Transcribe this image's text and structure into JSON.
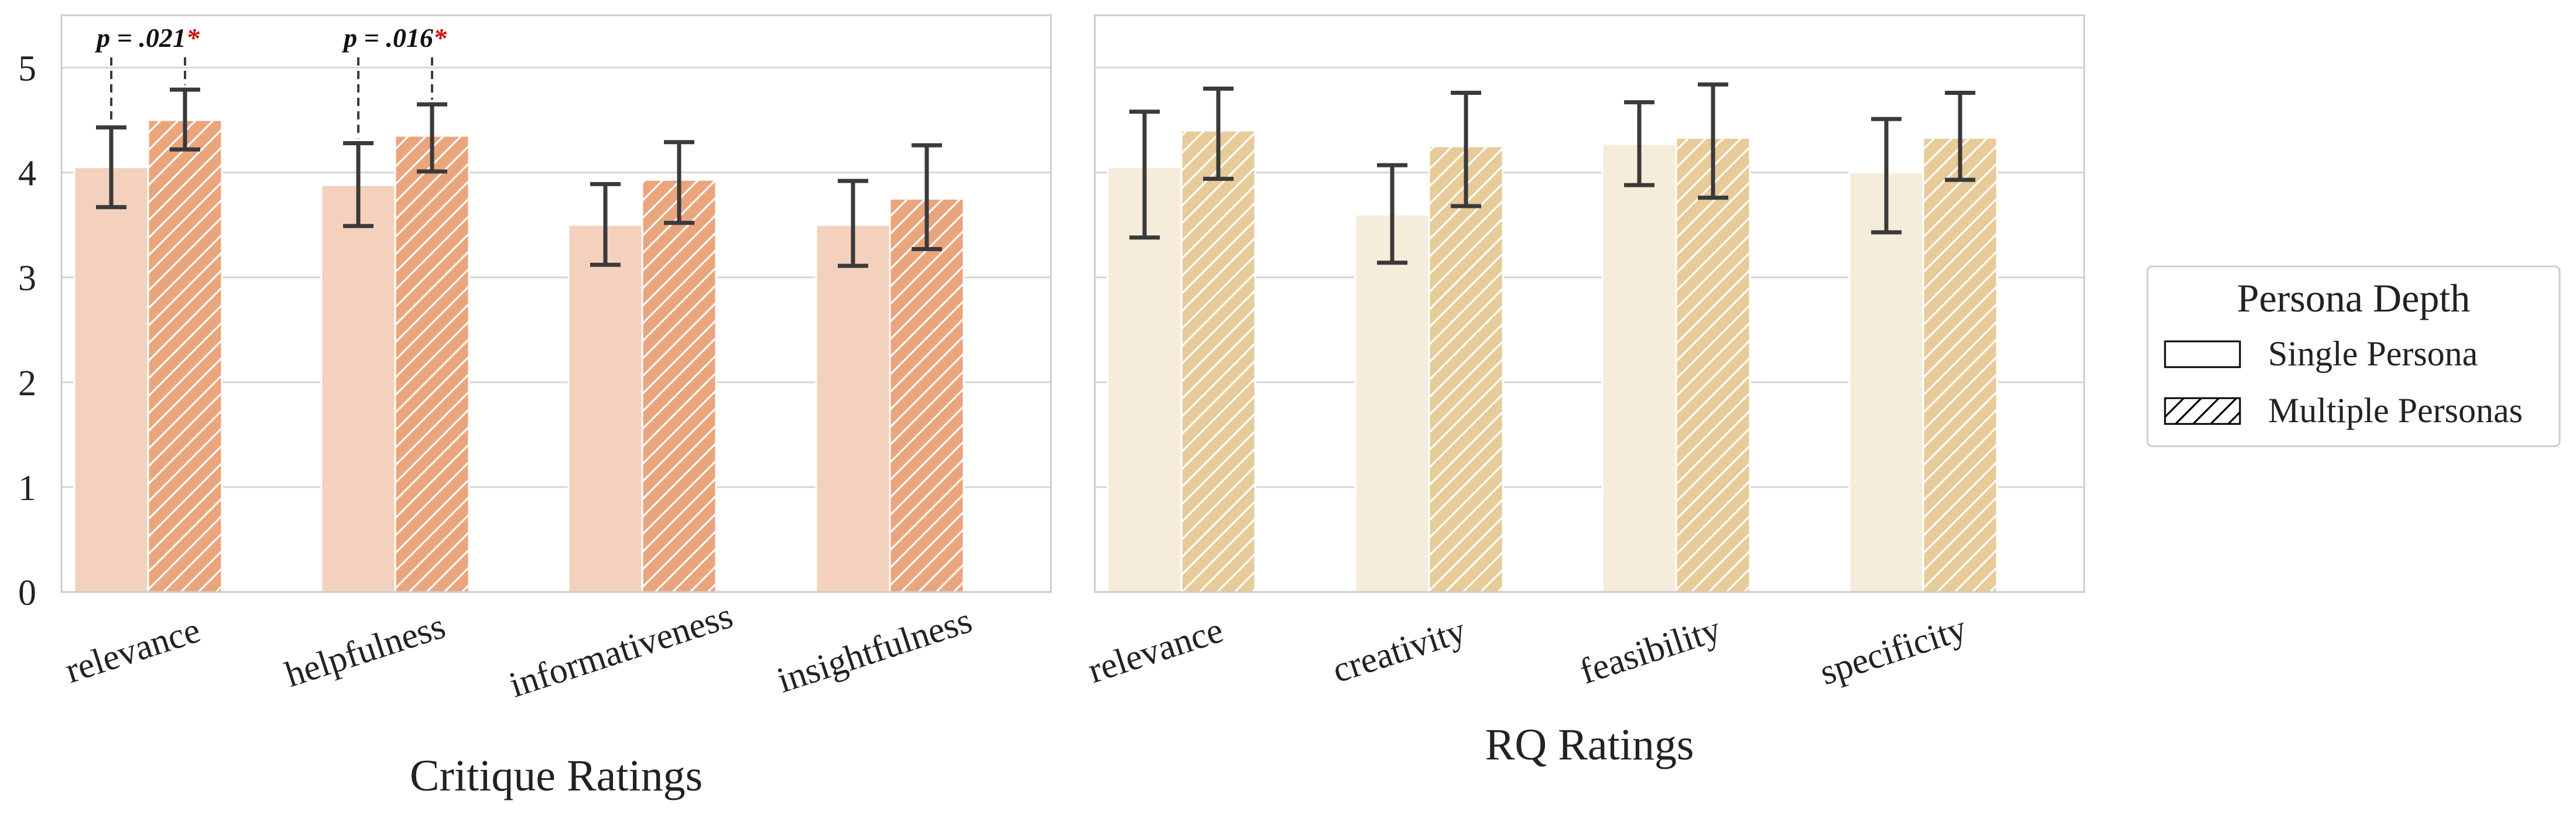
{
  "colors": {
    "critique_single": "#f3d1bd",
    "critique_multiple": "#eba57d",
    "rq_single": "#f5ecdb",
    "rq_multiple": "#e7cb98",
    "error_bar": "#3a3a3a",
    "grid": "#d6d6d6",
    "frame": "#cccccc",
    "significance": "#cc1111"
  },
  "chart_data": [
    {
      "type": "bar",
      "xlabel": "Critique Ratings",
      "ylabel": "",
      "ylim": [
        0,
        5.5
      ],
      "yticks": [
        "0",
        "1",
        "2",
        "3",
        "4",
        "5"
      ],
      "grid": true,
      "categories": [
        "relevance",
        "helpfulness",
        "informativeness",
        "insightfulness"
      ],
      "series": [
        {
          "name": "Single Persona",
          "values": [
            4.05,
            3.88,
            3.5,
            3.5
          ],
          "err_low": [
            3.67,
            3.49,
            3.12,
            3.11
          ],
          "err_high": [
            4.43,
            4.28,
            3.89,
            3.92
          ]
        },
        {
          "name": "Multiple Personas",
          "values": [
            4.5,
            4.35,
            3.93,
            3.75
          ],
          "err_low": [
            4.22,
            4.01,
            3.52,
            3.27
          ],
          "err_high": [
            4.79,
            4.65,
            4.29,
            4.26
          ]
        }
      ],
      "annotations": [
        {
          "category": "relevance",
          "text": "p = .021",
          "star": "*"
        },
        {
          "category": "helpfulness",
          "text": "p = .016",
          "star": "*"
        }
      ]
    },
    {
      "type": "bar",
      "xlabel": "RQ Ratings",
      "ylabel": "",
      "ylim": [
        0,
        5.5
      ],
      "grid": true,
      "categories": [
        "relevance",
        "creativity",
        "feasibility",
        "specificity"
      ],
      "series": [
        {
          "name": "Single Persona",
          "values": [
            4.05,
            3.6,
            4.27,
            4.0
          ],
          "err_low": [
            3.38,
            3.14,
            3.88,
            3.43
          ],
          "err_high": [
            4.58,
            4.07,
            4.67,
            4.51
          ]
        },
        {
          "name": "Multiple Personas",
          "values": [
            4.4,
            4.25,
            4.33,
            4.33
          ],
          "err_low": [
            3.94,
            3.68,
            3.76,
            3.93
          ],
          "err_high": [
            4.8,
            4.76,
            4.84,
            4.76
          ]
        }
      ],
      "annotations": []
    }
  ],
  "legend": {
    "title": "Persona Depth",
    "items": [
      {
        "label": "Single Persona",
        "pattern": "plain"
      },
      {
        "label": "Multiple Personas",
        "pattern": "hatched"
      }
    ]
  }
}
